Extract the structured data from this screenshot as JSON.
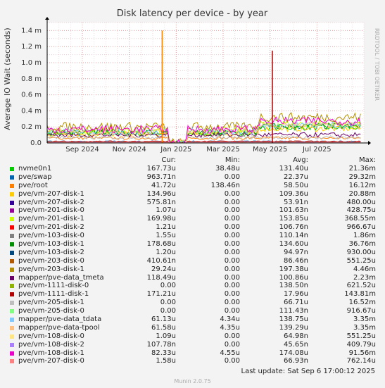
{
  "chart_data": {
    "type": "line",
    "title": "Disk latency per device - by year",
    "ylabel": "Average IO Wait (seconds)",
    "y_ticks": [
      "0.0",
      "0.2 m",
      "0.4 m",
      "0.6 m",
      "0.8 m",
      "1.0 m",
      "1.2 m",
      "1.4 m"
    ],
    "y_tick_values": [
      0,
      0.2,
      0.4,
      0.6,
      0.8,
      1.0,
      1.2,
      1.4
    ],
    "ylim": [
      0,
      1.5
    ],
    "x_ticks": [
      "Sep 2024",
      "Nov 2024",
      "Jan 2025",
      "Mar 2025",
      "May 2025",
      "Jul 2025"
    ],
    "x_tick_positions_months": [
      1.5,
      3.5,
      5.5,
      7.5,
      9.5,
      11.5
    ],
    "x_range_months": [
      0,
      13.5
    ],
    "grid": true,
    "spikes": [
      {
        "series": "pve/root",
        "month": 4.9,
        "value": 1.4
      },
      {
        "series": "pve/vm-1111-disk-1",
        "month": 9.6,
        "value": 1.15
      }
    ]
  },
  "watermark": "RRDTOOL / TOBI OETIKER",
  "legend_headers": {
    "cur": "Cur:",
    "min": "Min:",
    "avg": "Avg:",
    "max": "Max:"
  },
  "legend": [
    {
      "name": "nvme0n1",
      "color": "#00cc00",
      "cur": "167.73u",
      "min": "38.48u",
      "avg": "131.40u",
      "max": "21.36m"
    },
    {
      "name": "pve/swap",
      "color": "#0066b3",
      "cur": "963.71n",
      "min": "0.00",
      "avg": "22.37u",
      "max": "29.32m"
    },
    {
      "name": "pve/root",
      "color": "#ff8000",
      "cur": "41.72u",
      "min": "138.46n",
      "avg": "58.50u",
      "max": "16.12m"
    },
    {
      "name": "pve/vm-207-disk-1",
      "color": "#ffcc00",
      "cur": "134.96u",
      "min": "0.00",
      "avg": "109.36u",
      "max": "20.88m"
    },
    {
      "name": "pve/vm-207-disk-2",
      "color": "#330099",
      "cur": "575.81n",
      "min": "0.00",
      "avg": "53.91n",
      "max": "480.00u"
    },
    {
      "name": "pve/vm-201-disk-0",
      "color": "#990099",
      "cur": "1.07u",
      "min": "0.00",
      "avg": "101.63n",
      "max": "428.75u"
    },
    {
      "name": "pve/vm-201-disk-1",
      "color": "#ccff00",
      "cur": "169.98u",
      "min": "0.00",
      "avg": "153.85u",
      "max": "368.55m"
    },
    {
      "name": "pve/vm-201-disk-2",
      "color": "#ff0000",
      "cur": "1.21u",
      "min": "0.00",
      "avg": "106.76n",
      "max": "966.67u"
    },
    {
      "name": "pve/vm-103-disk-0",
      "color": "#808080",
      "cur": "1.55u",
      "min": "0.00",
      "avg": "110.14n",
      "max": "1.86m"
    },
    {
      "name": "pve/vm-103-disk-1",
      "color": "#008f00",
      "cur": "178.68u",
      "min": "0.00",
      "avg": "134.60u",
      "max": "36.76m"
    },
    {
      "name": "pve/vm-103-disk-2",
      "color": "#00487d",
      "cur": "1.20u",
      "min": "0.00",
      "avg": "94.97n",
      "max": "930.00u"
    },
    {
      "name": "pve/vm-203-disk-0",
      "color": "#b35a00",
      "cur": "410.61n",
      "min": "0.00",
      "avg": "86.46n",
      "max": "551.25u"
    },
    {
      "name": "pve/vm-203-disk-1",
      "color": "#b38f00",
      "cur": "29.24u",
      "min": "0.00",
      "avg": "197.38u",
      "max": "4.46m"
    },
    {
      "name": "mapper/pve-data_tmeta",
      "color": "#6b006b",
      "cur": "118.49u",
      "min": "0.00",
      "avg": "100.86u",
      "max": "2.23m"
    },
    {
      "name": "pve/vm-1111-disk-0",
      "color": "#8fb300",
      "cur": "0.00",
      "min": "0.00",
      "avg": "138.50n",
      "max": "621.52u"
    },
    {
      "name": "pve/vm-1111-disk-1",
      "color": "#b30000",
      "cur": "171.21u",
      "min": "0.00",
      "avg": "17.96u",
      "max": "143.81m"
    },
    {
      "name": "pve/vm-205-disk-1",
      "color": "#bebebe",
      "cur": "0.00",
      "min": "0.00",
      "avg": "66.71u",
      "max": "16.52m"
    },
    {
      "name": "pve/vm-205-disk-0",
      "color": "#80ff80",
      "cur": "0.00",
      "min": "0.00",
      "avg": "111.43n",
      "max": "916.67u"
    },
    {
      "name": "mapper/pve-data_tdata",
      "color": "#80c9ff",
      "cur": "61.13u",
      "min": "4.34u",
      "avg": "138.75u",
      "max": "3.35m"
    },
    {
      "name": "mapper/pve-data-tpool",
      "color": "#ffc080",
      "cur": "61.58u",
      "min": "4.35u",
      "avg": "139.29u",
      "max": "3.35m"
    },
    {
      "name": "pve/vm-108-disk-0",
      "color": "#ffe680",
      "cur": "1.09u",
      "min": "0.00",
      "avg": "64.98n",
      "max": "551.25u"
    },
    {
      "name": "pve/vm-108-disk-2",
      "color": "#aa80ff",
      "cur": "107.78n",
      "min": "0.00",
      "avg": "45.65n",
      "max": "409.79u"
    },
    {
      "name": "pve/vm-108-disk-1",
      "color": "#ee00cc",
      "cur": "82.33u",
      "min": "4.55u",
      "avg": "174.08u",
      "max": "91.56m"
    },
    {
      "name": "pve/vm-207-disk-0",
      "color": "#ff8080",
      "cur": "1.58u",
      "min": "0.00",
      "avg": "66.93n",
      "max": "762.14u"
    }
  ],
  "last_update": "Last update: Sat Sep  6 17:00:12 2025",
  "munin_version": "Munin 2.0.75"
}
